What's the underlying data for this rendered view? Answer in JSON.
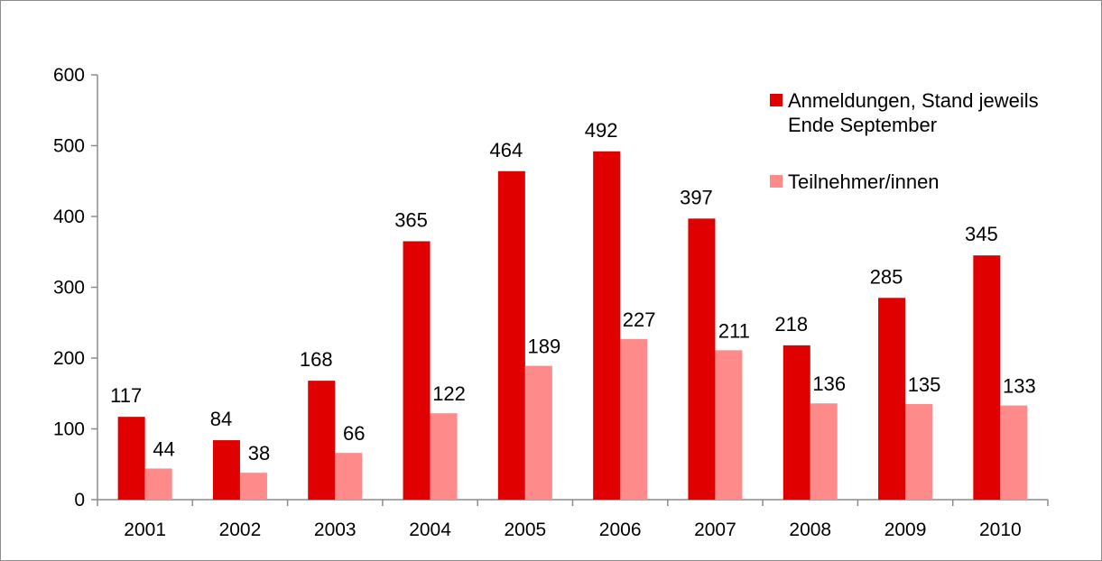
{
  "chart_data": {
    "type": "bar",
    "categories": [
      "2001",
      "2002",
      "2003",
      "2004",
      "2005",
      "2006",
      "2007",
      "2008",
      "2009",
      "2010"
    ],
    "series": [
      {
        "name": "Anmeldungen, Stand jeweils Ende September",
        "name_lines": [
          "Anmeldungen, Stand jeweils",
          "Ende September"
        ],
        "color": "#e00000",
        "values": [
          117,
          84,
          168,
          365,
          464,
          492,
          397,
          218,
          285,
          345
        ]
      },
      {
        "name": "Teilnehmer/innen",
        "name_lines": [
          "Teilnehmer/innen"
        ],
        "color": "#ff8a8a",
        "values": [
          44,
          38,
          66,
          122,
          189,
          227,
          211,
          136,
          135,
          133
        ]
      }
    ],
    "ylim": [
      0,
      600
    ],
    "yticks": [
      "0",
      "100",
      "200",
      "300",
      "400",
      "500",
      "600"
    ],
    "title": "",
    "xlabel": "",
    "ylabel": "",
    "grid": false,
    "legend_position": "top-right",
    "axis_color": "#8c8c8c"
  }
}
